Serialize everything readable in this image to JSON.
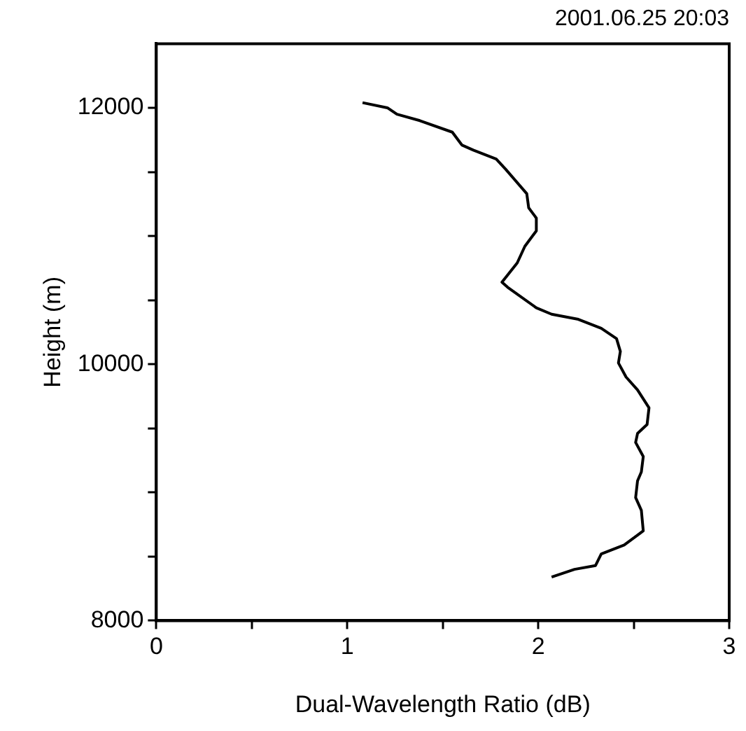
{
  "chart_data": {
    "type": "line",
    "title": "2001.06.25 20:03",
    "xlabel": "Dual-Wavelength Ratio (dB)",
    "ylabel": "Height (m)",
    "series": [
      {
        "color": "#000000",
        "x": [
          1.08,
          1.21,
          1.26,
          1.38,
          1.55,
          1.6,
          1.66,
          1.78,
          1.83,
          1.94,
          1.95,
          1.99,
          1.99,
          1.93,
          1.89,
          1.81,
          1.84,
          1.99,
          2.07,
          2.21,
          2.33,
          2.41,
          2.43,
          2.42,
          2.46,
          2.52,
          2.58,
          2.57,
          2.52,
          2.51,
          2.55,
          2.54,
          2.52,
          2.51,
          2.54,
          2.55,
          2.45,
          2.33,
          2.3,
          2.19,
          2.07
        ],
        "values": [
          12040,
          12000,
          11950,
          11900,
          11810,
          11710,
          11670,
          11600,
          11520,
          11330,
          11220,
          11140,
          11040,
          10920,
          10790,
          10640,
          10600,
          10440,
          10390,
          10350,
          10280,
          10200,
          10100,
          10010,
          9900,
          9800,
          9660,
          9530,
          9460,
          9390,
          9280,
          9160,
          9090,
          8960,
          8860,
          8700,
          8590,
          8520,
          8430,
          8400,
          8340
        ]
      }
    ],
    "xlim": [
      0,
      3
    ],
    "xticks": [
      0,
      {
        "value": 0.5,
        "label": null
      },
      1,
      {
        "value": 1.5,
        "label": null
      },
      2,
      {
        "value": 2.5,
        "label": null
      },
      3
    ],
    "ylim": [
      8000,
      12500
    ],
    "yticks": [
      8000,
      {
        "value": 8500,
        "label": null
      },
      {
        "value": 9000,
        "label": null
      },
      {
        "value": 9500,
        "label": null
      },
      10000,
      {
        "value": 10500,
        "label": null
      },
      {
        "value": 11000,
        "label": null
      },
      {
        "value": 11500,
        "label": null
      },
      12000
    ],
    "grid": false,
    "legend": false,
    "marker": "none",
    "line_style": "solid"
  }
}
